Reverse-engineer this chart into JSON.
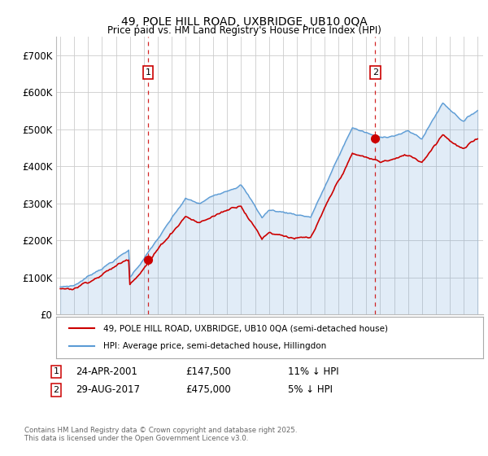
{
  "title1": "49, POLE HILL ROAD, UXBRIDGE, UB10 0QA",
  "title2": "Price paid vs. HM Land Registry's House Price Index (HPI)",
  "ylim": [
    0,
    750000
  ],
  "yticks": [
    0,
    100000,
    200000,
    300000,
    400000,
    500000,
    600000,
    700000
  ],
  "ytick_labels": [
    "£0",
    "£100K",
    "£200K",
    "£300K",
    "£400K",
    "£500K",
    "£600K",
    "£700K"
  ],
  "hpi_color": "#5b9bd5",
  "hpi_fill_color": "#ddeeff",
  "price_color": "#cc0000",
  "dashed_color": "#cc0000",
  "grid_color": "#cccccc",
  "background_color": "#ffffff",
  "legend_label_price": "49, POLE HILL ROAD, UXBRIDGE, UB10 0QA (semi-detached house)",
  "legend_label_hpi": "HPI: Average price, semi-detached house, Hillingdon",
  "sale1_x": 2001.31,
  "sale1_y": 147500,
  "sale1_label": "1",
  "sale2_x": 2017.65,
  "sale2_y": 475000,
  "sale2_label": "2",
  "copyright": "Contains HM Land Registry data © Crown copyright and database right 2025.\nThis data is licensed under the Open Government Licence v3.0.",
  "hpi_years": [
    1995.0,
    1995.083,
    1995.167,
    1995.25,
    1995.333,
    1995.417,
    1995.5,
    1995.583,
    1995.667,
    1995.75,
    1995.833,
    1995.917,
    1996.0,
    1996.083,
    1996.167,
    1996.25,
    1996.333,
    1996.417,
    1996.5,
    1996.583,
    1996.667,
    1996.75,
    1996.833,
    1996.917,
    1997.0,
    1997.083,
    1997.167,
    1997.25,
    1997.333,
    1997.417,
    1997.5,
    1997.583,
    1997.667,
    1997.75,
    1997.833,
    1997.917,
    1998.0,
    1998.083,
    1998.167,
    1998.25,
    1998.333,
    1998.417,
    1998.5,
    1998.583,
    1998.667,
    1998.75,
    1998.833,
    1998.917,
    1999.0,
    1999.083,
    1999.167,
    1999.25,
    1999.333,
    1999.417,
    1999.5,
    1999.583,
    1999.667,
    1999.75,
    1999.833,
    1999.917,
    2000.0,
    2000.083,
    2000.167,
    2000.25,
    2000.333,
    2000.417,
    2000.5,
    2000.583,
    2000.667,
    2000.75,
    2000.833,
    2000.917,
    2001.0,
    2001.083,
    2001.167,
    2001.25,
    2001.333,
    2001.417,
    2001.5,
    2001.583,
    2001.667,
    2001.75,
    2001.833,
    2001.917,
    2002.0,
    2002.083,
    2002.167,
    2002.25,
    2002.333,
    2002.417,
    2002.5,
    2002.583,
    2002.667,
    2002.75,
    2002.833,
    2002.917,
    2003.0,
    2003.083,
    2003.167,
    2003.25,
    2003.333,
    2003.417,
    2003.5,
    2003.583,
    2003.667,
    2003.75,
    2003.833,
    2003.917,
    2004.0,
    2004.083,
    2004.167,
    2004.25,
    2004.333,
    2004.417,
    2004.5,
    2004.583,
    2004.667,
    2004.75,
    2004.833,
    2004.917,
    2005.0,
    2005.083,
    2005.167,
    2005.25,
    2005.333,
    2005.417,
    2005.5,
    2005.583,
    2005.667,
    2005.75,
    2005.833,
    2005.917,
    2006.0,
    2006.083,
    2006.167,
    2006.25,
    2006.333,
    2006.417,
    2006.5,
    2006.583,
    2006.667,
    2006.75,
    2006.833,
    2006.917,
    2007.0,
    2007.083,
    2007.167,
    2007.25,
    2007.333,
    2007.417,
    2007.5,
    2007.583,
    2007.667,
    2007.75,
    2007.833,
    2007.917,
    2008.0,
    2008.083,
    2008.167,
    2008.25,
    2008.333,
    2008.417,
    2008.5,
    2008.583,
    2008.667,
    2008.75,
    2008.833,
    2008.917,
    2009.0,
    2009.083,
    2009.167,
    2009.25,
    2009.333,
    2009.417,
    2009.5,
    2009.583,
    2009.667,
    2009.75,
    2009.833,
    2009.917,
    2010.0,
    2010.083,
    2010.167,
    2010.25,
    2010.333,
    2010.417,
    2010.5,
    2010.583,
    2010.667,
    2010.75,
    2010.833,
    2010.917,
    2011.0,
    2011.083,
    2011.167,
    2011.25,
    2011.333,
    2011.417,
    2011.5,
    2011.583,
    2011.667,
    2011.75,
    2011.833,
    2011.917,
    2012.0,
    2012.083,
    2012.167,
    2012.25,
    2012.333,
    2012.417,
    2012.5,
    2012.583,
    2012.667,
    2012.75,
    2012.833,
    2012.917,
    2013.0,
    2013.083,
    2013.167,
    2013.25,
    2013.333,
    2013.417,
    2013.5,
    2013.583,
    2013.667,
    2013.75,
    2013.833,
    2013.917,
    2014.0,
    2014.083,
    2014.167,
    2014.25,
    2014.333,
    2014.417,
    2014.5,
    2014.583,
    2014.667,
    2014.75,
    2014.833,
    2014.917,
    2015.0,
    2015.083,
    2015.167,
    2015.25,
    2015.333,
    2015.417,
    2015.5,
    2015.583,
    2015.667,
    2015.75,
    2015.833,
    2015.917,
    2016.0,
    2016.083,
    2016.167,
    2016.25,
    2016.333,
    2016.417,
    2016.5,
    2016.583,
    2016.667,
    2016.75,
    2016.833,
    2016.917,
    2017.0,
    2017.083,
    2017.167,
    2017.25,
    2017.333,
    2017.417,
    2017.5,
    2017.583,
    2017.667,
    2017.75,
    2017.833,
    2017.917,
    2018.0,
    2018.083,
    2018.167,
    2018.25,
    2018.333,
    2018.417,
    2018.5,
    2018.583,
    2018.667,
    2018.75,
    2018.833,
    2018.917,
    2019.0,
    2019.083,
    2019.167,
    2019.25,
    2019.333,
    2019.417,
    2019.5,
    2019.583,
    2019.667,
    2019.75,
    2019.833,
    2019.917,
    2020.0,
    2020.083,
    2020.167,
    2020.25,
    2020.333,
    2020.417,
    2020.5,
    2020.583,
    2020.667,
    2020.75,
    2020.833,
    2020.917,
    2021.0,
    2021.083,
    2021.167,
    2021.25,
    2021.333,
    2021.417,
    2021.5,
    2021.583,
    2021.667,
    2021.75,
    2021.833,
    2021.917,
    2022.0,
    2022.083,
    2022.167,
    2022.25,
    2022.333,
    2022.417,
    2022.5,
    2022.583,
    2022.667,
    2022.75,
    2022.833,
    2022.917,
    2023.0,
    2023.083,
    2023.167,
    2023.25,
    2023.333,
    2023.417,
    2023.5,
    2023.583,
    2023.667,
    2023.75,
    2023.833,
    2023.917,
    2024.0,
    2024.083,
    2024.167,
    2024.25,
    2024.333,
    2024.417,
    2024.5,
    2024.583,
    2024.667,
    2024.75,
    2024.833,
    2024.917,
    2025.0
  ],
  "xlim_left": 1994.7,
  "xlim_right": 2025.4
}
